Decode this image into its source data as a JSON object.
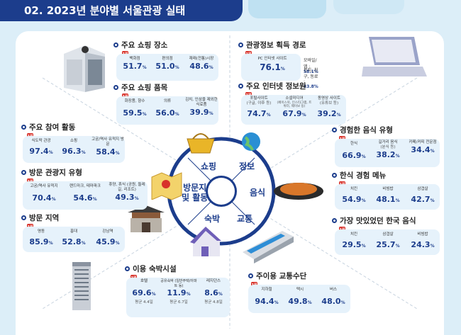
{
  "header": {
    "title": "02. 2023년 분야별 서울관광 실태"
  },
  "hub": {
    "shopping": "쇼핑",
    "info": "정보",
    "food": "음식",
    "transport": "교통",
    "lodging": "숙박",
    "visit_line1": "방문지",
    "visit_line2": "및 활동"
  },
  "rank1": "1위",
  "shopping_places": {
    "title": "주요 쇼핑 장소",
    "items": [
      {
        "label": "백화점",
        "value": "51.7"
      },
      {
        "label": "편의점",
        "value": "51.0"
      },
      {
        "label": "재래(전통)시장",
        "value": "48.6"
      }
    ]
  },
  "shopping_items": {
    "title": "주요 쇼핑 품목",
    "items": [
      {
        "label": "화장품, 향수",
        "value": "59.5"
      },
      {
        "label": "의류",
        "value": "56.0"
      },
      {
        "label": "김치, 인삼을 제외한 식료품",
        "value": "39.9"
      }
    ]
  },
  "activities": {
    "title": "주요 참여 활동",
    "items": [
      {
        "label": "식도락 관광",
        "value": "97.4"
      },
      {
        "label": "쇼핑",
        "value": "96.3"
      },
      {
        "label": "고궁/역사 유적지 방문",
        "value": "58.4"
      }
    ]
  },
  "visit_types": {
    "title": "방문 관광지 유형",
    "items": [
      {
        "label": "고궁/역사 유적지",
        "value": "70.4"
      },
      {
        "label": "랜드마크, 테마파크",
        "value": "54.6"
      },
      {
        "label": "휴양, 휴식 (공원, 둘레길, 리조트)",
        "value": "49.3"
      }
    ]
  },
  "visit_areas": {
    "title": "방문 지역",
    "items": [
      {
        "label": "명동",
        "value": "85.9"
      },
      {
        "label": "홍대",
        "value": "52.8"
      },
      {
        "label": "강남역",
        "value": "45.9"
      }
    ]
  },
  "info_channels": {
    "title": "관광정보 획득 경로",
    "first_label": "PC 인터넷 사이트",
    "first_value": "76.1",
    "mobile_label": "모바일/앱 :",
    "mobile_value": "58.1%",
    "friends_label": "친지, 친구, 동료 :",
    "friends_value": "33.8%"
  },
  "info_sources": {
    "title": "주요 인터넷 정보원",
    "items": [
      {
        "label": "포털사이트",
        "sub": "(구글, 야후 등)",
        "value": "74.7"
      },
      {
        "label": "소셜미디어",
        "sub": "(페이스북, 인스타그램, 트위터, 웨이보 등)",
        "value": "67.9"
      },
      {
        "label": "동영상 사이트",
        "sub": "(유튜브 등)",
        "value": "39.2"
      }
    ]
  },
  "food_types": {
    "title": "경험한 음식 유형",
    "items": [
      {
        "label": "한식",
        "value": "66.9"
      },
      {
        "label": "길거리 음식",
        "sub": "(분식 등)",
        "value": "38.2"
      },
      {
        "label": "카페/커피 전문점",
        "value": "34.4"
      }
    ]
  },
  "korean_menu": {
    "title": "한식 경험 메뉴",
    "items": [
      {
        "label": "치킨",
        "value": "54.9"
      },
      {
        "label": "비빔밥",
        "value": "48.1"
      },
      {
        "label": "삼겹살",
        "value": "42.7"
      }
    ]
  },
  "best_food": {
    "title": "가장 맛있었던 한국 음식",
    "items": [
      {
        "label": "치킨",
        "value": "29.5"
      },
      {
        "label": "삼겹살",
        "value": "25.7"
      },
      {
        "label": "비빔밥",
        "value": "24.3"
      }
    ]
  },
  "lodging": {
    "title": "이용 숙박시설",
    "items": [
      {
        "label": "호텔",
        "value": "69.6",
        "nights": "평균 4.4일"
      },
      {
        "label": "공유숙박 (일반주택/아파트 등)",
        "value": "11.9",
        "nights": "평균 6.7일"
      },
      {
        "label": "레지던스",
        "value": "8.6",
        "nights": "평균 4.8일"
      }
    ]
  },
  "transport": {
    "title": "주이용 교통수단",
    "items": [
      {
        "label": "지하철",
        "value": "94.4"
      },
      {
        "label": "택시",
        "value": "49.8"
      },
      {
        "label": "버스",
        "value": "48.0"
      }
    ]
  },
  "unit": "%"
}
